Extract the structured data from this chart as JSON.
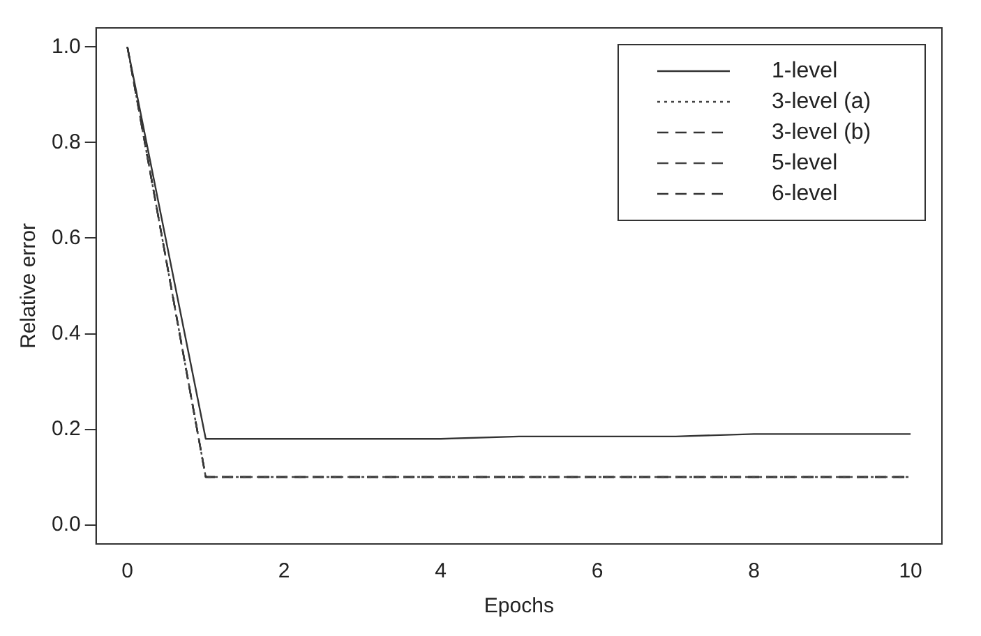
{
  "chart_data": {
    "type": "line",
    "xlabel": "Epochs",
    "ylabel": "Relative error",
    "x": [
      0,
      1,
      2,
      3,
      4,
      5,
      6,
      7,
      8,
      9,
      10
    ],
    "series": [
      {
        "name": "1-level",
        "color": "#333333",
        "line_style": "solid",
        "values": [
          1.0,
          0.18,
          0.18,
          0.18,
          0.18,
          0.185,
          0.185,
          0.185,
          0.19,
          0.19,
          0.19
        ]
      },
      {
        "name": "3-level (a)",
        "color": "#444444",
        "line_style": "dotted",
        "values": [
          1.0,
          0.1,
          0.1,
          0.1,
          0.1,
          0.1,
          0.1,
          0.1,
          0.1,
          0.1,
          0.1
        ]
      },
      {
        "name": "3-level (b)",
        "color": "#333333",
        "line_style": "dashed",
        "values": [
          1.0,
          0.1,
          0.1,
          0.1,
          0.1,
          0.1,
          0.1,
          0.1,
          0.1,
          0.1,
          0.1
        ]
      },
      {
        "name": "5-level",
        "color": "#444444",
        "line_style": "dashed",
        "values": [
          1.0,
          0.1,
          0.1,
          0.1,
          0.1,
          0.1,
          0.1,
          0.1,
          0.1,
          0.1,
          0.1
        ]
      },
      {
        "name": "6-level",
        "color": "#333333",
        "line_style": "dashed",
        "values": [
          1.0,
          0.1,
          0.1,
          0.1,
          0.1,
          0.1,
          0.1,
          0.1,
          0.1,
          0.1,
          0.1
        ]
      }
    ],
    "xlim": [
      -0.4,
      10.4
    ],
    "xticks": [
      0,
      2,
      4,
      6,
      8,
      10
    ],
    "ylim": [
      -0.04,
      1.04
    ],
    "yticks": [
      {
        "value": 0,
        "label": "0.0"
      },
      {
        "value": 0.2,
        "label": "0.2"
      },
      {
        "value": 0.4,
        "label": "0.4"
      },
      {
        "value": 0.6,
        "label": "0.6"
      },
      {
        "value": 0.8,
        "label": "0.8"
      },
      {
        "value": 1,
        "label": "1.0"
      }
    ],
    "grid": false,
    "legend": "top right",
    "marker": "none"
  }
}
